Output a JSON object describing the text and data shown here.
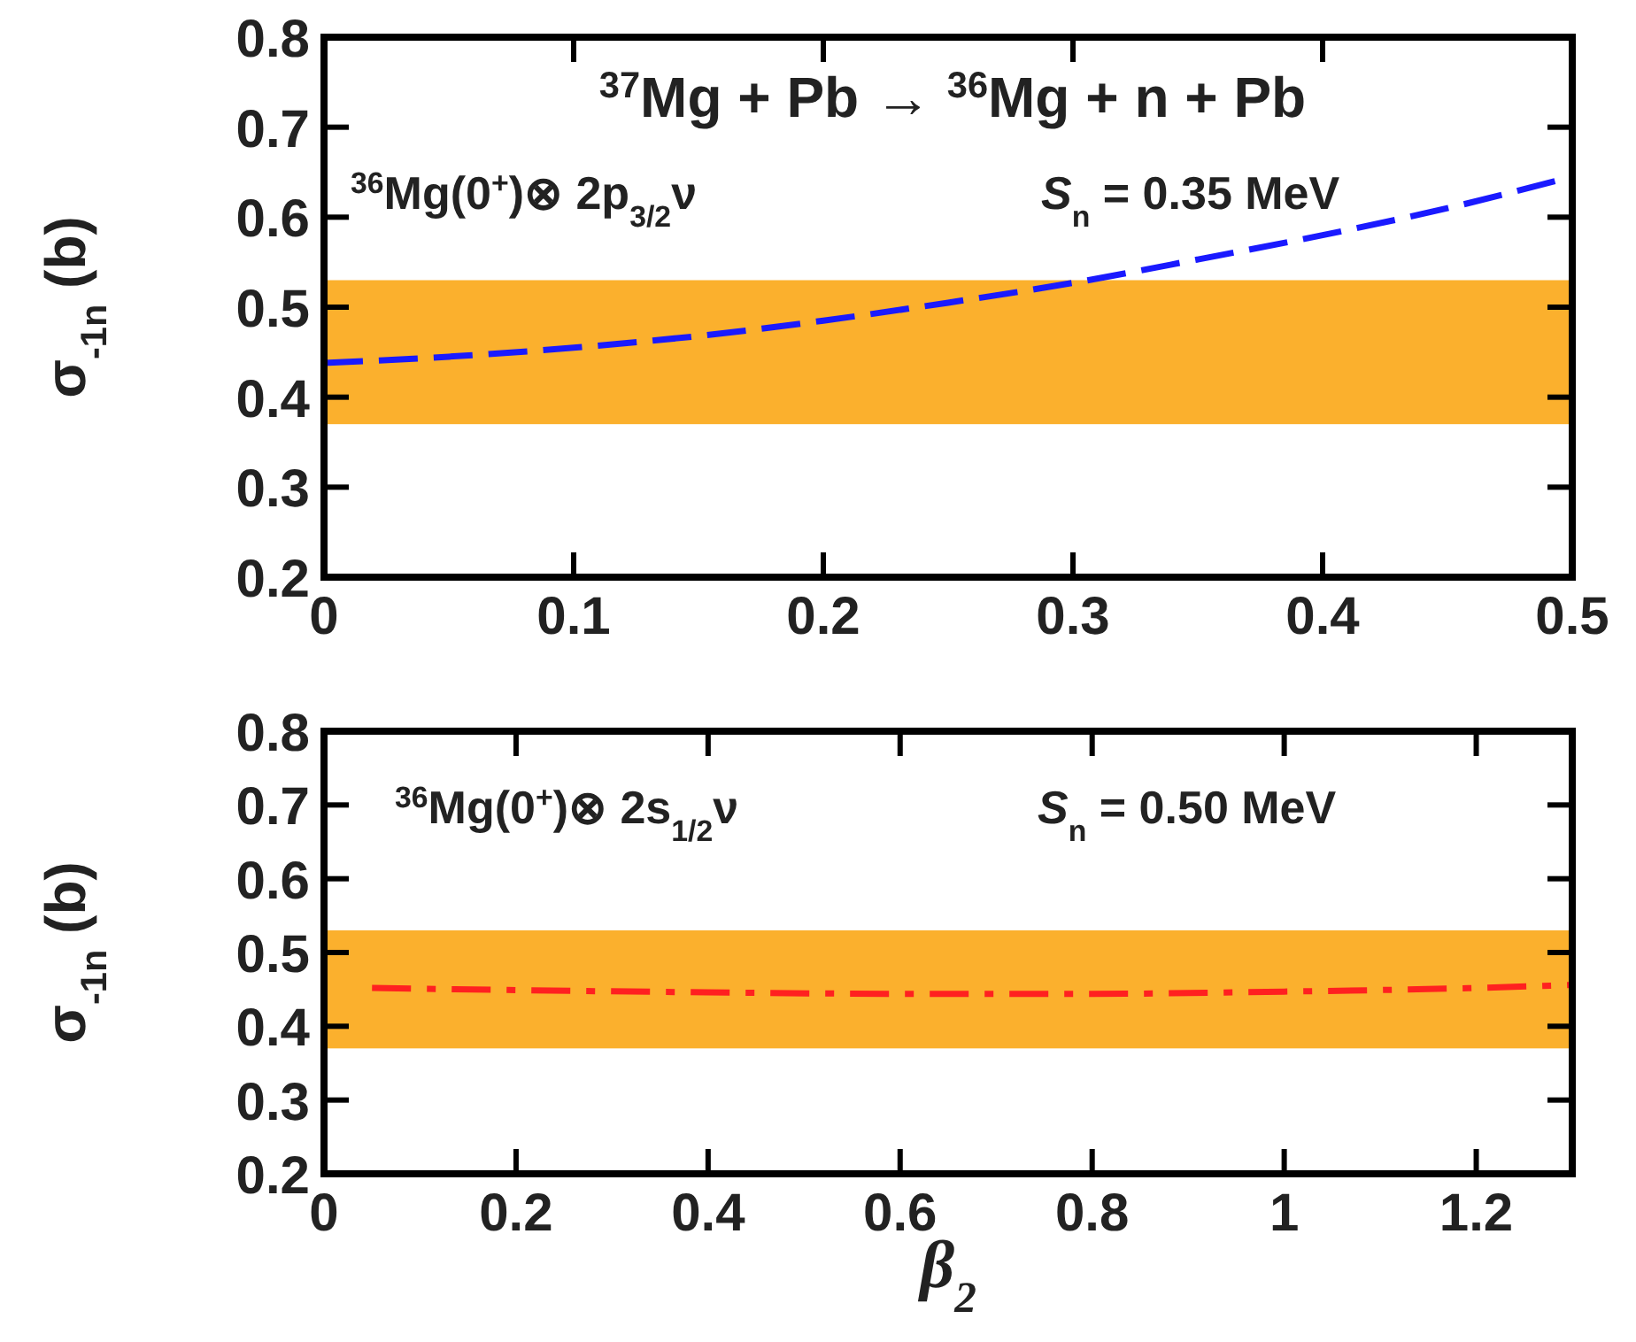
{
  "chart_data": [
    {
      "type": "line",
      "ylabel": "σ$_{-1n}$ (b)",
      "xlim": [
        0,
        0.5
      ],
      "xticks": [
        0,
        0.1,
        0.2,
        0.3,
        0.4,
        0.5
      ],
      "ylim": [
        0.2,
        0.8
      ],
      "yticks": [
        0.2,
        0.3,
        0.4,
        0.5,
        0.6,
        0.7,
        0.8
      ],
      "bands": [
        {
          "axis": "y",
          "from": 0.37,
          "to": 0.53,
          "color": "#fbb02d"
        }
      ],
      "annotations": [
        "$^{37}$Mg + Pb → $^{36}$Mg + n + Pb",
        "$^{36}$Mg(0$^{+}$)⊗ 2p$_{3/2}$ν",
        "S$_{n}$ = 0.35 MeV"
      ],
      "series": [
        {
          "color": "#1a1aff",
          "line_style": "dashed",
          "x": [
            0,
            0.05,
            0.1,
            0.15,
            0.2,
            0.25,
            0.3,
            0.35,
            0.4,
            0.45,
            0.5
          ],
          "values": [
            0.438,
            0.445,
            0.455,
            0.468,
            0.485,
            0.505,
            0.527,
            0.553,
            0.58,
            0.61,
            0.645
          ]
        }
      ]
    },
    {
      "type": "line",
      "ylabel": "σ$_{-1n}$ (b)",
      "xlabel": "β$_{2}$",
      "xlim": [
        0,
        1.3
      ],
      "xticks": [
        0,
        0.2,
        0.4,
        0.6,
        0.8,
        1,
        1.2
      ],
      "ylim": [
        0.2,
        0.8
      ],
      "yticks": [
        0.2,
        0.3,
        0.4,
        0.5,
        0.6,
        0.7,
        0.8
      ],
      "bands": [
        {
          "axis": "y",
          "from": 0.37,
          "to": 0.53,
          "color": "#fbb02d"
        }
      ],
      "annotations": [
        "$^{36}$Mg(0$^{+}$)⊗ 2s$_{1/2}$ν",
        "S$_{n}$ = 0.50 MeV"
      ],
      "series": [
        {
          "color": "#ff2020",
          "line_style": "dashdot",
          "x": [
            0.05,
            0.2,
            0.4,
            0.6,
            0.8,
            1,
            1.2,
            1.3
          ],
          "values": [
            0.452,
            0.449,
            0.446,
            0.444,
            0.444,
            0.447,
            0.452,
            0.456
          ]
        }
      ]
    }
  ]
}
